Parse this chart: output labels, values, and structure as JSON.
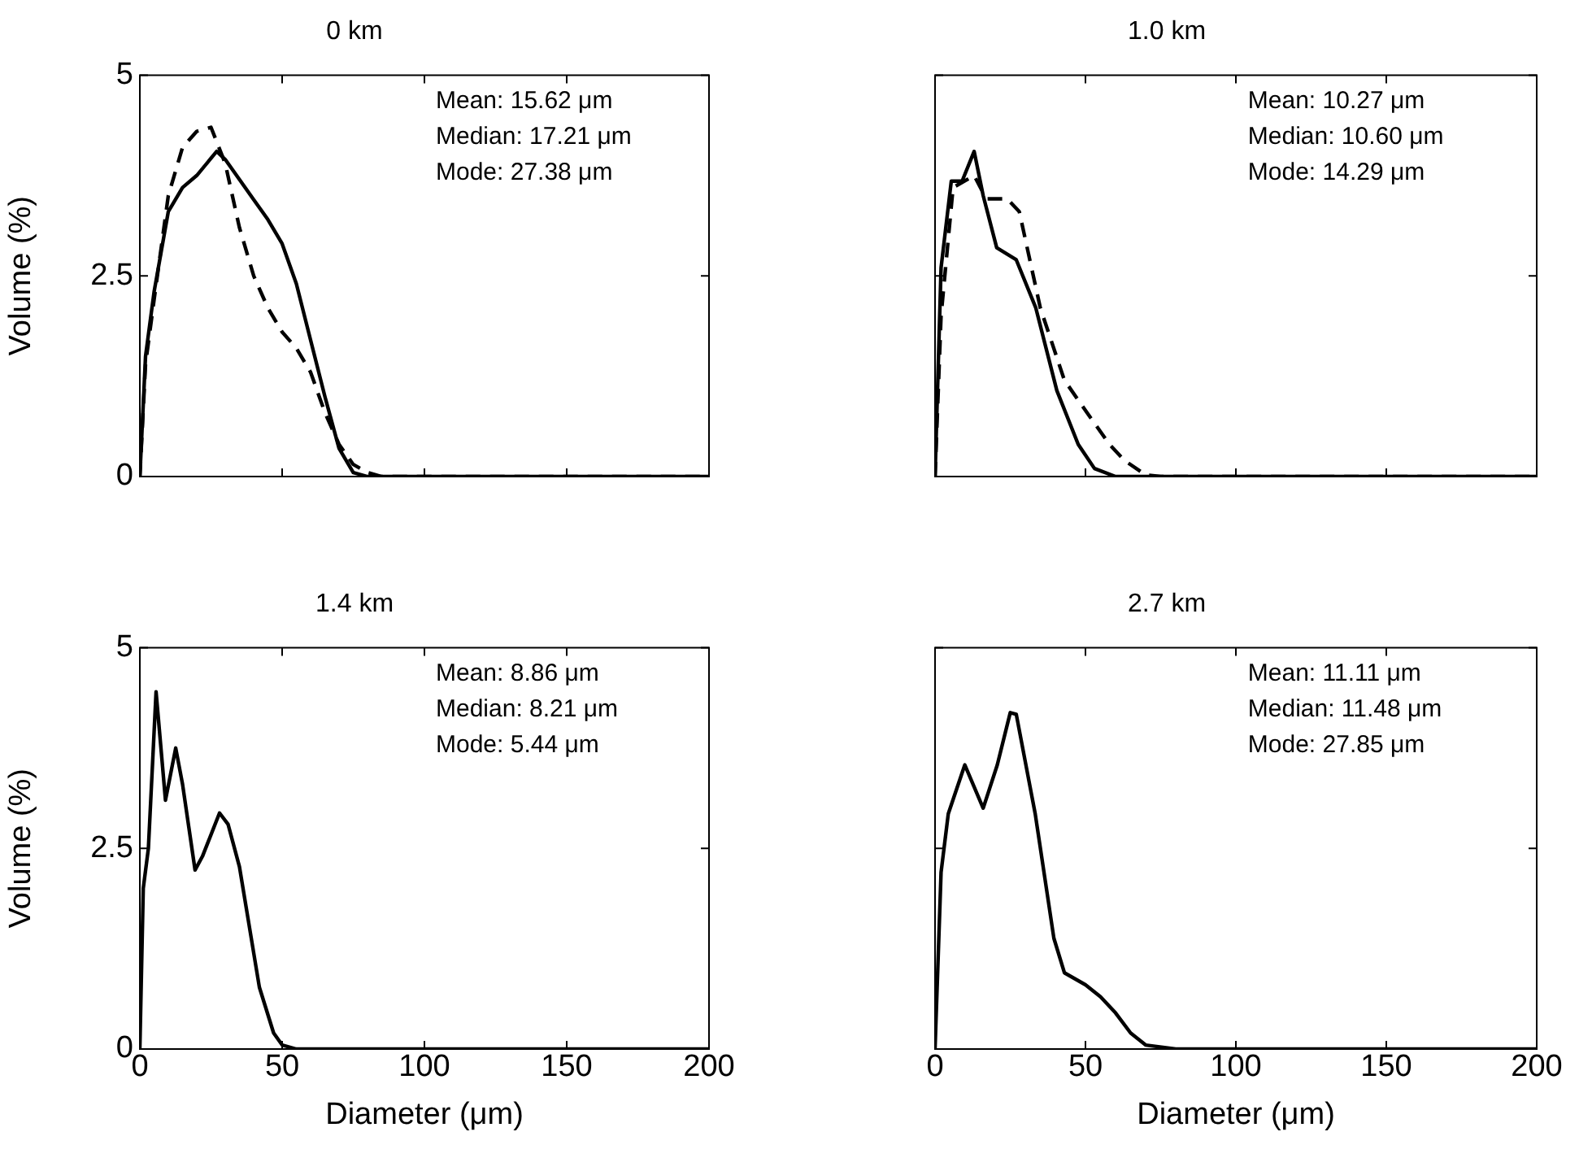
{
  "chart_data": [
    {
      "type": "line",
      "title": "0 km",
      "ylabel": "Volume (%)",
      "xlim": [
        0,
        200
      ],
      "xticks": [
        0,
        50,
        100,
        150,
        200
      ],
      "ylim": [
        0,
        5
      ],
      "yticks": [
        0,
        2.5,
        5
      ],
      "tick_labels": "y",
      "grid": false,
      "legend": false,
      "marker": "none",
      "annotations": [
        "Mean: 15.62 μm",
        "Median: 17.21 μm",
        "Mode: 27.38 μm"
      ],
      "series": [
        {
          "color": "#000000",
          "line_style": "solid",
          "x": [
            0,
            2,
            5,
            10,
            15,
            20,
            27,
            30,
            35,
            40,
            45,
            50,
            55,
            60,
            65,
            70,
            75,
            80,
            100,
            150,
            200
          ],
          "values": [
            0,
            1.5,
            2.3,
            3.3,
            3.6,
            3.75,
            4.05,
            3.95,
            3.7,
            3.45,
            3.2,
            2.9,
            2.4,
            1.7,
            1.0,
            0.35,
            0.05,
            0,
            0,
            0,
            0
          ]
        },
        {
          "color": "#000000",
          "line_style": "dashed",
          "x": [
            0,
            2,
            5,
            10,
            15,
            20,
            25,
            30,
            35,
            40,
            45,
            50,
            55,
            60,
            65,
            70,
            75,
            80,
            85,
            100,
            150,
            200
          ],
          "values": [
            0,
            1.4,
            2.2,
            3.5,
            4.1,
            4.3,
            4.35,
            3.9,
            3.1,
            2.5,
            2.1,
            1.8,
            1.6,
            1.3,
            0.8,
            0.4,
            0.15,
            0.05,
            0,
            0,
            0,
            0
          ]
        }
      ]
    },
    {
      "type": "line",
      "title": "1.0 km",
      "xlim": [
        0,
        200
      ],
      "xticks": [
        0,
        50,
        100,
        150,
        200
      ],
      "ylim": [
        0,
        5
      ],
      "yticks": [
        0,
        2.5,
        5
      ],
      "tick_labels": false,
      "grid": false,
      "legend": false,
      "marker": "none",
      "annotations": [
        "Mean: 10.27 μm",
        "Median: 10.60 μm",
        "Mode: 14.29 μm"
      ],
      "series": [
        {
          "color": "#000000",
          "line_style": "solid",
          "x": [
            0,
            2,
            5.4,
            9,
            13,
            16,
            20.5,
            27,
            33.5,
            40.5,
            47.6,
            53,
            60,
            100,
            150,
            200
          ],
          "values": [
            0,
            2.6,
            3.68,
            3.68,
            4.05,
            3.5,
            2.85,
            2.7,
            2.1,
            1.07,
            0.4,
            0.1,
            0,
            0,
            0,
            0
          ]
        },
        {
          "color": "#000000",
          "line_style": "dashed",
          "x": [
            0,
            2,
            6,
            13,
            17,
            24,
            28,
            35,
            43,
            51,
            58,
            63,
            70,
            75,
            100,
            150,
            200
          ],
          "values": [
            0,
            2.0,
            3.6,
            3.75,
            3.46,
            3.46,
            3.3,
            2.1,
            1.2,
            0.77,
            0.4,
            0.2,
            0.02,
            0,
            0,
            0,
            0
          ]
        }
      ]
    },
    {
      "type": "line",
      "title": "1.4 km",
      "xlabel": "Diameter (μm)",
      "ylabel": "Volume (%)",
      "xlim": [
        0,
        200
      ],
      "xticks": [
        0,
        50,
        100,
        150,
        200
      ],
      "ylim": [
        0,
        5
      ],
      "yticks": [
        0,
        2.5,
        5
      ],
      "grid": false,
      "legend": false,
      "marker": "none",
      "annotations": [
        "Mean: 8.86 μm",
        "Median: 8.21 μm",
        "Mode: 5.44 μm"
      ],
      "series": [
        {
          "color": "#000000",
          "line_style": "solid",
          "x": [
            0,
            1.2,
            3,
            5.7,
            9,
            12.6,
            15,
            19.4,
            22,
            28,
            31,
            35,
            42,
            47,
            50,
            55,
            100,
            150,
            200
          ],
          "values": [
            0,
            2.0,
            2.5,
            4.45,
            3.1,
            3.75,
            3.3,
            2.23,
            2.4,
            2.94,
            2.8,
            2.27,
            0.77,
            0.2,
            0.05,
            0,
            0,
            0,
            0
          ]
        }
      ]
    },
    {
      "type": "line",
      "title": "2.7 km",
      "xlabel": "Diameter (μm)",
      "xlim": [
        0,
        200
      ],
      "xticks": [
        0,
        50,
        100,
        150,
        200
      ],
      "ylim": [
        0,
        5
      ],
      "yticks": [
        0,
        2.5,
        5
      ],
      "tick_labels": "x",
      "grid": false,
      "legend": false,
      "marker": "none",
      "annotations": [
        "Mean: 11.11 μm",
        "Median: 11.48 μm",
        "Mode: 27.85 μm"
      ],
      "series": [
        {
          "color": "#000000",
          "line_style": "solid",
          "x": [
            0,
            2,
            4.4,
            9.9,
            16,
            20.7,
            25,
            27,
            33.3,
            39.5,
            43,
            50,
            55,
            60,
            65,
            70,
            80,
            100,
            150,
            200
          ],
          "values": [
            0,
            2.2,
            2.93,
            3.54,
            3.0,
            3.54,
            4.19,
            4.17,
            2.93,
            1.38,
            0.95,
            0.8,
            0.65,
            0.45,
            0.2,
            0.05,
            0,
            0,
            0,
            0
          ]
        }
      ]
    }
  ]
}
